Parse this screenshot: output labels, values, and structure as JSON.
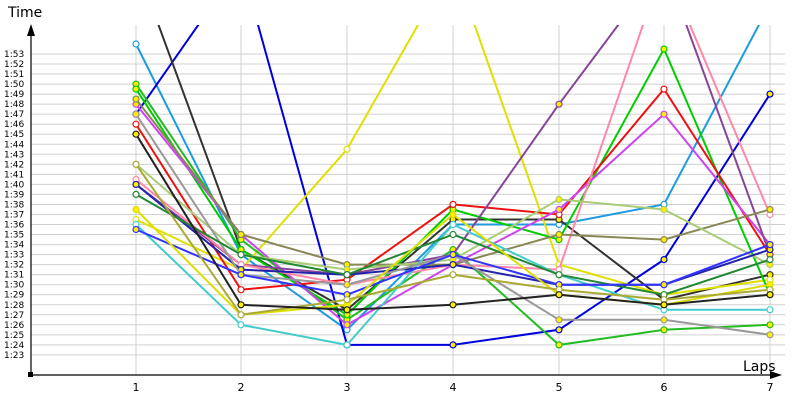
{
  "chart_data": {
    "type": "line",
    "title": "",
    "xlabel": "Laps",
    "ylabel": "Time",
    "x": [
      1,
      2,
      3,
      4,
      5,
      6,
      7
    ],
    "x_tick_labels": [
      "1",
      "2",
      "3",
      "4",
      "5",
      "6",
      "7"
    ],
    "y_tick_labels": [
      "1:23",
      "1:24",
      "1:25",
      "1:26",
      "1:27",
      "1:28",
      "1:29",
      "1:30",
      "1:31",
      "1:32",
      "1:33",
      "1:34",
      "1:35",
      "1:36",
      "1:37",
      "1:38",
      "1:39",
      "1:40",
      "1:41",
      "1:42",
      "1:43",
      "1:44",
      "1:45",
      "1:46",
      "1:47",
      "1:48",
      "1:49",
      "1:50",
      "1:51",
      "1:52",
      "1:53"
    ],
    "ylim_seconds": [
      83,
      113
    ],
    "grid": "horizontal and vertical",
    "legend": "none",
    "series": [
      {
        "color": "#1e9be0",
        "values": [
          114.0,
          93.0,
          85.5,
          96.0,
          96.0,
          98.0,
          118.0
        ]
      },
      {
        "color": "#0000dd",
        "values": [
          107.0,
          122.0,
          84.0,
          84.0,
          85.5,
          92.5,
          109.0
        ]
      },
      {
        "color": "#333333",
        "values": [
          122.0,
          93.5,
          87.5,
          96.5,
          96.5,
          88.5,
          91.0
        ]
      },
      {
        "color": "#e0e000",
        "values": [
          96.5,
          91.5,
          103.5,
          122.0,
          92.0,
          89.0,
          90.5
        ]
      },
      {
        "color": "#22bb22",
        "values": [
          110.0,
          94.5,
          86.5,
          93.5,
          84.0,
          85.5,
          86.0
        ]
      },
      {
        "color": "#00cc00",
        "values": [
          109.5,
          93.5,
          87.0,
          97.5,
          94.5,
          113.5,
          89.0
        ]
      },
      {
        "color": "#ee1111",
        "values": [
          106.0,
          89.5,
          90.5,
          98.0,
          97.0,
          109.5,
          93.0
        ]
      },
      {
        "color": "#cc44ee",
        "values": [
          108.0,
          95.0,
          86.0,
          92.0,
          97.5,
          107.0,
          94.0
        ]
      },
      {
        "color": "#884499",
        "values": [
          100.0,
          92.0,
          91.0,
          93.0,
          108.0,
          122.0,
          93.0
        ]
      },
      {
        "color": "#ff88aa",
        "values": [
          100.5,
          92.0,
          90.0,
          92.0,
          91.5,
          122.0,
          97.0
        ]
      },
      {
        "color": "#888855",
        "values": [
          108.5,
          95.0,
          92.0,
          92.0,
          95.0,
          94.5,
          97.5
        ]
      },
      {
        "color": "#aacc77",
        "values": [
          102.0,
          93.0,
          91.5,
          92.5,
          98.5,
          97.5,
          92.0
        ]
      },
      {
        "color": "#44cccc",
        "values": [
          96.0,
          86.0,
          84.0,
          96.0,
          91.0,
          87.5,
          87.5
        ]
      },
      {
        "color": "#2222aa",
        "values": [
          100.0,
          91.5,
          91.0,
          92.0,
          90.0,
          90.0,
          93.5
        ]
      },
      {
        "color": "#999999",
        "values": [
          107.0,
          91.0,
          90.0,
          93.0,
          86.5,
          86.5,
          85.0
        ]
      },
      {
        "color": "#228833",
        "values": [
          99.0,
          93.0,
          91.0,
          95.0,
          91.0,
          89.0,
          92.5
        ]
      },
      {
        "color": "#3333ff",
        "values": [
          95.5,
          91.0,
          89.0,
          93.0,
          90.0,
          90.0,
          94.0
        ]
      },
      {
        "color": "#dddd00",
        "values": [
          97.5,
          87.0,
          88.0,
          97.0,
          89.0,
          88.0,
          90.0
        ]
      },
      {
        "color": "#aaaa33",
        "values": [
          102.0,
          87.0,
          88.5,
          91.0,
          89.5,
          88.5,
          89.5
        ]
      },
      {
        "color": "#222222",
        "values": [
          105.0,
          88.0,
          87.5,
          88.0,
          89.0,
          88.0,
          89.0
        ]
      }
    ]
  }
}
